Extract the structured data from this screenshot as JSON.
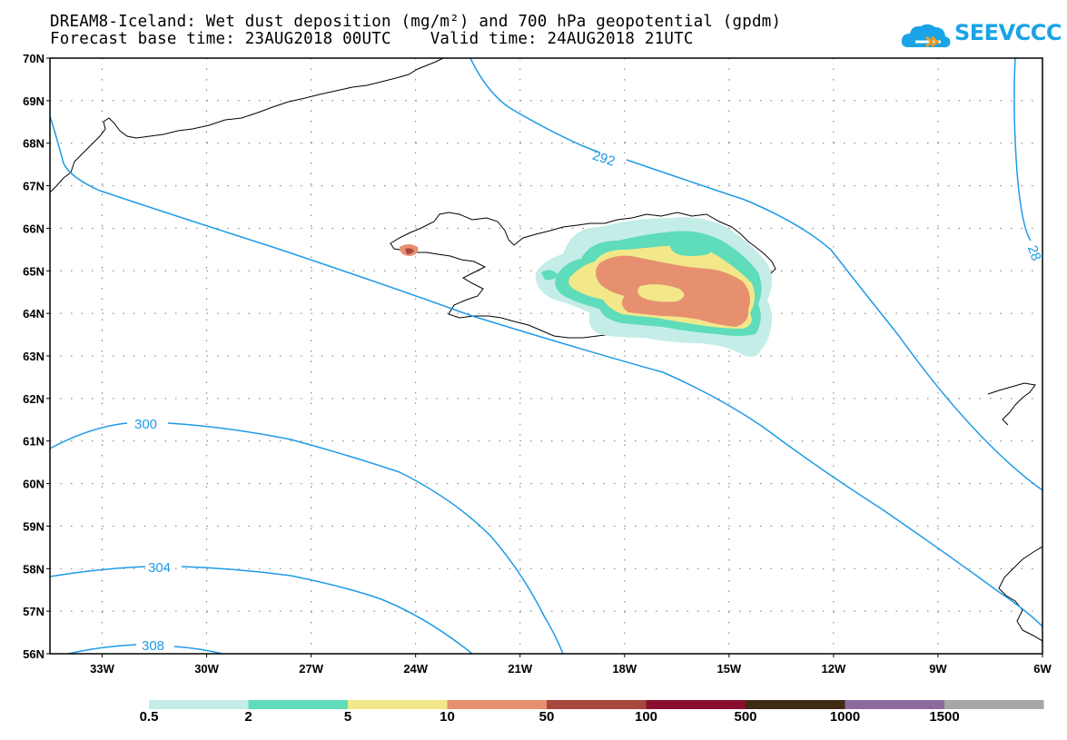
{
  "title_line1": "DREAM8-Iceland: Wet dust deposition (mg/m²) and 700 hPa geopotential (gpdm)",
  "title_line2": "Forecast base time: 23AUG2018 00UTC    Valid time: 24AUG2018 21UTC",
  "logo_text": "SEEVCCC",
  "map": {
    "lon_range": [
      -34.5,
      -6
    ],
    "lat_range": [
      56,
      70
    ],
    "lat_ticks": [
      "70N",
      "69N",
      "68N",
      "67N",
      "66N",
      "65N",
      "64N",
      "63N",
      "62N",
      "61N",
      "60N",
      "59N",
      "58N",
      "57N",
      "56N"
    ],
    "lon_ticks": [
      "33W",
      "30W",
      "27W",
      "24W",
      "21W",
      "18W",
      "15W",
      "12W",
      "9W",
      "6W"
    ],
    "grid": "dotted",
    "contour_color": "#1e9be6",
    "contour_labels": [
      "292",
      "28",
      "300",
      "304",
      "308"
    ]
  },
  "colorbar": {
    "colors": [
      "#c4ede8",
      "#5fdcba",
      "#f2e88a",
      "#e79070",
      "#a8473e",
      "#8a0f2e",
      "#3f2a14",
      "#8c6a9e",
      "#a6a6a6"
    ],
    "labels": [
      "0.5",
      "2",
      "5",
      "10",
      "50",
      "100",
      "500",
      "1000",
      "1500"
    ]
  }
}
